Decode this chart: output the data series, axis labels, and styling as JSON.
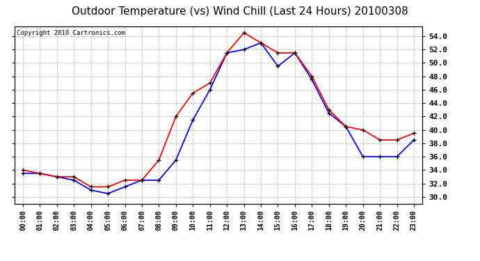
{
  "title": "Outdoor Temperature (vs) Wind Chill (Last 24 Hours) 20100308",
  "copyright": "Copyright 2010 Cartronics.com",
  "hours": [
    "00:00",
    "01:00",
    "02:00",
    "03:00",
    "04:00",
    "05:00",
    "06:00",
    "07:00",
    "08:00",
    "09:00",
    "10:00",
    "11:00",
    "12:00",
    "13:00",
    "14:00",
    "15:00",
    "16:00",
    "17:00",
    "18:00",
    "19:00",
    "20:00",
    "21:00",
    "22:00",
    "23:00"
  ],
  "temp": [
    34.0,
    33.5,
    33.0,
    33.0,
    31.5,
    31.5,
    32.5,
    32.5,
    35.5,
    42.0,
    45.5,
    47.0,
    51.5,
    54.5,
    53.0,
    51.5,
    51.5,
    48.0,
    43.0,
    40.5,
    40.0,
    38.5,
    38.5,
    39.5
  ],
  "wind_chill": [
    33.5,
    33.5,
    33.0,
    32.5,
    31.0,
    30.5,
    31.5,
    32.5,
    32.5,
    35.5,
    41.5,
    46.0,
    51.5,
    52.0,
    53.0,
    49.5,
    51.5,
    47.5,
    42.5,
    40.5,
    36.0,
    36.0,
    36.0,
    38.5
  ],
  "temp_color": "#ff0000",
  "wind_chill_color": "#0000ff",
  "ylim": [
    29.0,
    55.5
  ],
  "yticks": [
    30.0,
    32.0,
    34.0,
    36.0,
    38.0,
    40.0,
    42.0,
    44.0,
    46.0,
    48.0,
    50.0,
    52.0,
    54.0
  ],
  "background_color": "#ffffff",
  "plot_bg_color": "#ffffff",
  "grid_color": "#bbbbbb",
  "title_fontsize": 11,
  "copyright_fontsize": 6.5,
  "tick_fontsize": 8,
  "xtick_fontsize": 7
}
